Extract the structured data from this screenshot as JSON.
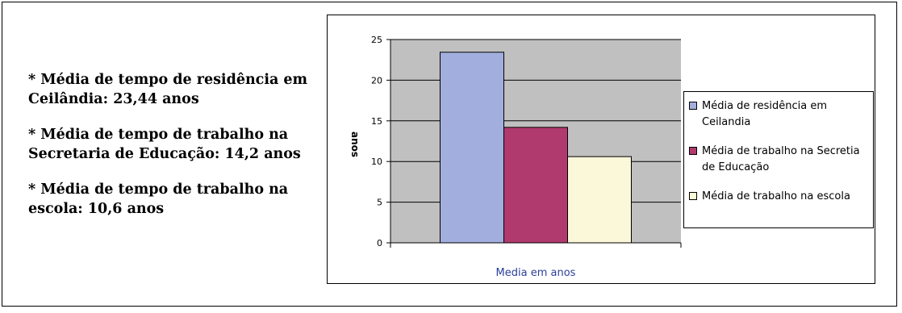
{
  "notes": [
    "* Média de tempo de residência em Ceilândia: 23,44 anos",
    "* Média de tempo de trabalho na Secretaria de Educação: 14,2 anos",
    "* Média de tempo de trabalho na escola: 10,6 anos"
  ],
  "chart_data": {
    "type": "bar",
    "categories": [
      "Media em anos"
    ],
    "series": [
      {
        "name": "Média de residência em Ceilandia",
        "values": [
          23.44
        ],
        "color": "#a2aedd"
      },
      {
        "name": "Média  de trabalho na Secretia de Educação",
        "values": [
          14.2
        ],
        "color": "#b03a6d"
      },
      {
        "name": "Média de trabalho na escola",
        "values": [
          10.6
        ],
        "color": "#fbf7d9"
      }
    ],
    "xlabel": "Media em anos",
    "ylabel": "anos",
    "ylim": [
      0,
      25
    ],
    "yticks": [
      0,
      5,
      10,
      15,
      20,
      25
    ],
    "grid": true,
    "plot_background": "#c0c0c0",
    "legend": "right"
  }
}
